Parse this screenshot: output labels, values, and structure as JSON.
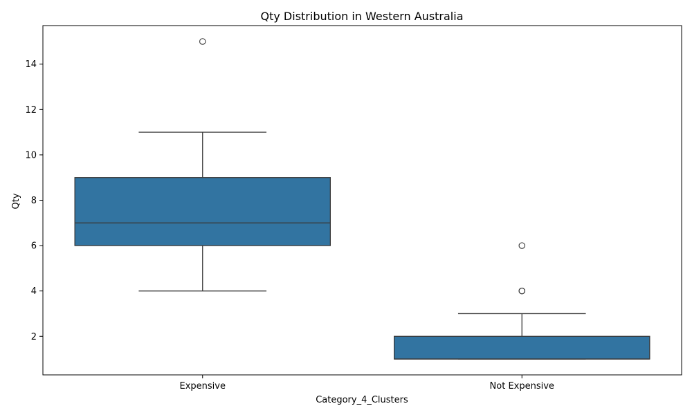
{
  "chart_data": {
    "type": "box",
    "title": "Qty Distribution in Western Australia",
    "xlabel": "Category_4_Clusters",
    "ylabel": "Qty",
    "ylim": [
      0.3,
      15.7
    ],
    "yticks": [
      2,
      4,
      6,
      8,
      10,
      12,
      14
    ],
    "ytick_labels": [
      "2",
      "4",
      "6",
      "8",
      "10",
      "12",
      "14"
    ],
    "grid": false,
    "legend": "none",
    "colors": {
      "box_fill": "#3274a1",
      "line": "#3a3a3a",
      "axis": "#000000"
    },
    "categories": [
      "Expensive",
      "Not Expensive"
    ],
    "boxes": [
      {
        "category": "Expensive",
        "whisker_low": 4,
        "q1": 6,
        "median": 7,
        "q3": 9,
        "whisker_high": 11,
        "outliers": [
          15
        ]
      },
      {
        "category": "Not Expensive",
        "whisker_low": 1,
        "q1": 1,
        "median": 1,
        "q3": 2,
        "whisker_high": 3,
        "outliers": [
          4,
          4,
          6
        ]
      }
    ]
  }
}
